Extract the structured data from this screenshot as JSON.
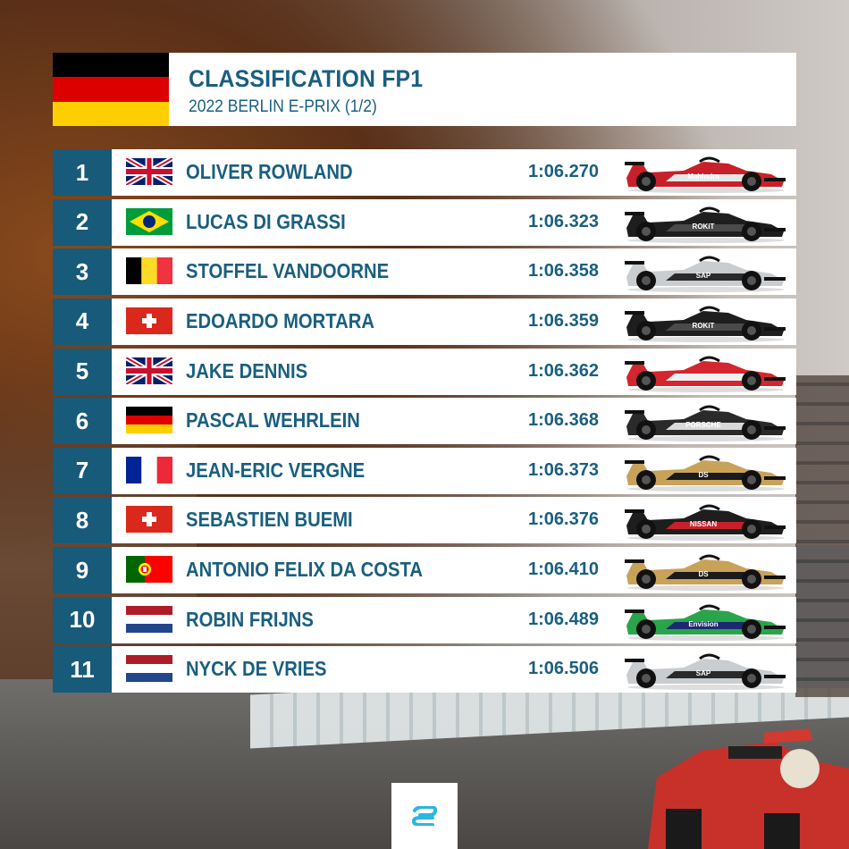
{
  "header": {
    "title": "CLASSIFICATION FP1",
    "subtitle": "2022 BERLIN E-PRIX (1/2)",
    "flag": "de"
  },
  "rows": [
    {
      "pos": "1",
      "flag": "gb",
      "name": "OLIVER ROWLAND",
      "time": "1:06.270",
      "car_colors": [
        "#c8202a",
        "#e6e6e6",
        "#111111"
      ],
      "car_text": "Mahindra"
    },
    {
      "pos": "2",
      "flag": "br",
      "name": "LUCAS DI GRASSI",
      "time": "1:06.323",
      "car_colors": [
        "#1e1e1e",
        "#4a4a4a",
        "#111111"
      ],
      "car_text": "ROKiT"
    },
    {
      "pos": "3",
      "flag": "be",
      "name": "STOFFEL VANDOORNE",
      "time": "1:06.358",
      "car_colors": [
        "#c9cdd0",
        "#2a2a2a",
        "#111111"
      ],
      "car_text": "SAP"
    },
    {
      "pos": "4",
      "flag": "ch",
      "name": "EDOARDO MORTARA",
      "time": "1:06.359",
      "car_colors": [
        "#1e1e1e",
        "#4a4a4a",
        "#111111"
      ],
      "car_text": "ROKiT"
    },
    {
      "pos": "5",
      "flag": "gb",
      "name": "JAKE DENNIS",
      "time": "1:06.362",
      "car_colors": [
        "#d3262e",
        "#f0f0f0",
        "#111111"
      ],
      "car_text": ""
    },
    {
      "pos": "6",
      "flag": "de",
      "name": "PASCAL WEHRLEIN",
      "time": "1:06.368",
      "car_colors": [
        "#2a2a2a",
        "#d9d9d9",
        "#111111"
      ],
      "car_text": "PORSCHE"
    },
    {
      "pos": "7",
      "flag": "fr",
      "name": "JEAN-ERIC VERGNE",
      "time": "1:06.373",
      "car_colors": [
        "#c9a25a",
        "#1b1b1b",
        "#111111"
      ],
      "car_text": "DS"
    },
    {
      "pos": "8",
      "flag": "ch",
      "name": "SEBASTIEN BUEMI",
      "time": "1:06.376",
      "car_colors": [
        "#1e1e1e",
        "#c8202a",
        "#111111"
      ],
      "car_text": "NISSAN"
    },
    {
      "pos": "9",
      "flag": "pt",
      "name": "ANTONIO FELIX DA COSTA",
      "time": "1:06.410",
      "car_colors": [
        "#c9a25a",
        "#1b1b1b",
        "#111111"
      ],
      "car_text": "DS"
    },
    {
      "pos": "10",
      "flag": "nl",
      "name": "ROBIN FRIJNS",
      "time": "1:06.489",
      "car_colors": [
        "#2aa44a",
        "#1b2a70",
        "#111111"
      ],
      "car_text": "Envision"
    },
    {
      "pos": "11",
      "flag": "nl",
      "name": "NYCK DE VRIES",
      "time": "1:06.506",
      "car_colors": [
        "#c9cdd0",
        "#2a2a2a",
        "#111111"
      ],
      "car_text": "SAP"
    }
  ],
  "brand": {
    "accent": "#1a5f7f",
    "pos_bg": "#185a79",
    "logo_icon": "formula-e-logo-icon"
  }
}
